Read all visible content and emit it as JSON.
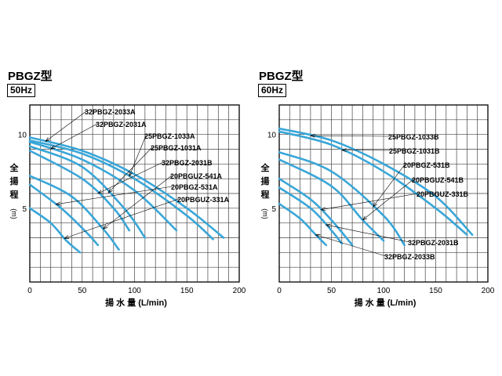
{
  "chart_data": [
    {
      "type": "line",
      "title": "PBGZ型",
      "subtitle": "50Hz",
      "ylabel": "全揚程 (m)",
      "ylabel_chars": [
        "全",
        "揚",
        "程"
      ],
      "ylabel_unit": "(m)",
      "xlabel": "揚 水 量 (L/min)",
      "xlim": [
        0,
        200
      ],
      "ylim": [
        0,
        12
      ],
      "x_ticks": [
        0,
        50,
        100,
        150,
        200
      ],
      "y_ticks": [
        5,
        10
      ],
      "grid": true,
      "line_color": "#39a6d8",
      "series": [
        {
          "name": "32PBGZ-2033A",
          "points": [
            [
              0,
              9.8
            ],
            [
              50,
              8.9
            ],
            [
              100,
              7.3
            ],
            [
              150,
              5.0
            ],
            [
              185,
              3.0
            ]
          ]
        },
        {
          "name": "32PBGZ-2031A",
          "points": [
            [
              0,
              9.5
            ],
            [
              50,
              8.3
            ],
            [
              100,
              6.2
            ],
            [
              140,
              3.5
            ]
          ]
        },
        {
          "name": "25PBGZ-1033A",
          "points": [
            [
              0,
              9.6
            ],
            [
              50,
              8.7
            ],
            [
              100,
              7.0
            ],
            [
              150,
              4.5
            ],
            [
              175,
              2.9
            ]
          ]
        },
        {
          "name": "25PBGZ-1031A",
          "points": [
            [
              0,
              9.2
            ],
            [
              50,
              7.8
            ],
            [
              90,
              5.0
            ],
            [
              110,
              3.0
            ]
          ]
        },
        {
          "name": "32PBGZ-2031B",
          "points": [
            [
              0,
              8.9
            ],
            [
              50,
              7.0
            ],
            [
              80,
              5.0
            ],
            [
              95,
              3.5
            ]
          ]
        },
        {
          "name": "20PBGUZ-541A",
          "points": [
            [
              0,
              7.2
            ],
            [
              40,
              5.8
            ],
            [
              70,
              3.6
            ],
            [
              85,
              2.2
            ]
          ]
        },
        {
          "name": "20PBGZ-531A",
          "points": [
            [
              0,
              6.6
            ],
            [
              30,
              5.0
            ],
            [
              55,
              3.3
            ],
            [
              65,
              2.5
            ]
          ]
        },
        {
          "name": "20PBGUZ-331A",
          "points": [
            [
              0,
              5.0
            ],
            [
              20,
              4.0
            ],
            [
              35,
              2.8
            ],
            [
              48,
              2.0
            ]
          ]
        }
      ]
    },
    {
      "type": "line",
      "title": "PBGZ型",
      "subtitle": "60Hz",
      "ylabel": "全揚程 (m)",
      "ylabel_chars": [
        "全",
        "揚",
        "程"
      ],
      "ylabel_unit": "(m)",
      "xlabel": "揚 水 量 (L/min)",
      "xlim": [
        0,
        200
      ],
      "ylim": [
        0,
        12
      ],
      "x_ticks": [
        0,
        50,
        100,
        150,
        200
      ],
      "y_ticks": [
        5,
        10
      ],
      "grid": true,
      "line_color": "#39a6d8",
      "series": [
        {
          "name": "25PBGZ-1033B",
          "points": [
            [
              0,
              10.4
            ],
            [
              50,
              9.6
            ],
            [
              100,
              8.0
            ],
            [
              150,
              5.8
            ],
            [
              185,
              3.2
            ]
          ]
        },
        {
          "name": "25PBGZ-1031B",
          "points": [
            [
              0,
              10.2
            ],
            [
              50,
              9.3
            ],
            [
              100,
              7.5
            ],
            [
              150,
              5.0
            ],
            [
              180,
              3.2
            ]
          ]
        },
        {
          "name": "20PBGZ-531B",
          "points": [
            [
              0,
              8.8
            ],
            [
              50,
              7.5
            ],
            [
              100,
              4.5
            ],
            [
              120,
              2.5
            ]
          ]
        },
        {
          "name": "20PBGUZ-541B",
          "points": [
            [
              0,
              8.3
            ],
            [
              50,
              6.5
            ],
            [
              80,
              4.2
            ],
            [
              100,
              2.8
            ]
          ]
        },
        {
          "name": "20PBGUZ-331B",
          "points": [
            [
              0,
              7.0
            ],
            [
              30,
              5.6
            ],
            [
              50,
              4.2
            ],
            [
              70,
              2.5
            ]
          ]
        },
        {
          "name": "32PBGZ-2031B",
          "points": [
            [
              0,
              6.4
            ],
            [
              30,
              5.0
            ],
            [
              50,
              3.5
            ],
            [
              60,
              2.6
            ]
          ]
        },
        {
          "name": "32PBGZ-2033B",
          "points": [
            [
              0,
              5.3
            ],
            [
              20,
              4.3
            ],
            [
              35,
              3.2
            ],
            [
              45,
              2.5
            ]
          ]
        }
      ]
    }
  ]
}
